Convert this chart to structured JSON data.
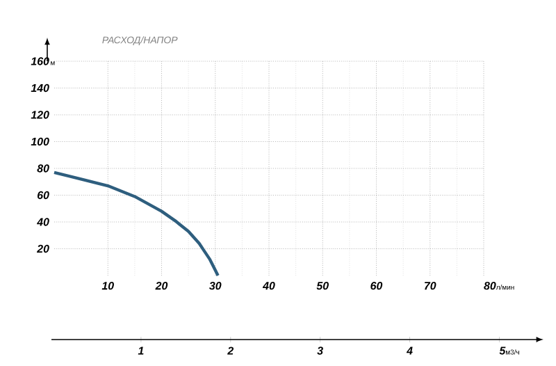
{
  "chart_data": {
    "type": "line",
    "title": "РАСХОД/НАПОР",
    "xlabel": "л/мин",
    "ylabel": "м",
    "x2label": "м3/ч",
    "x": [
      0,
      5,
      10,
      15,
      20,
      22.5,
      25,
      27,
      28,
      29,
      30,
      30.5
    ],
    "series": [
      {
        "color": "#2e5e7e",
        "values": [
          77,
          72,
          67,
          59,
          48,
          41,
          33,
          24,
          18,
          12,
          4,
          0
        ]
      }
    ],
    "xlim": [
      0,
      80
    ],
    "xticks": [
      10,
      20,
      30,
      40,
      50,
      60,
      70,
      80
    ],
    "ylim": [
      0,
      160
    ],
    "yticks": [
      20,
      40,
      60,
      80,
      100,
      120,
      140,
      160
    ],
    "x2lim": [
      0,
      5.4
    ],
    "x2ticks": [
      1,
      2,
      3,
      4,
      5
    ],
    "grid": true,
    "marker": "none",
    "line_style": "solid"
  }
}
